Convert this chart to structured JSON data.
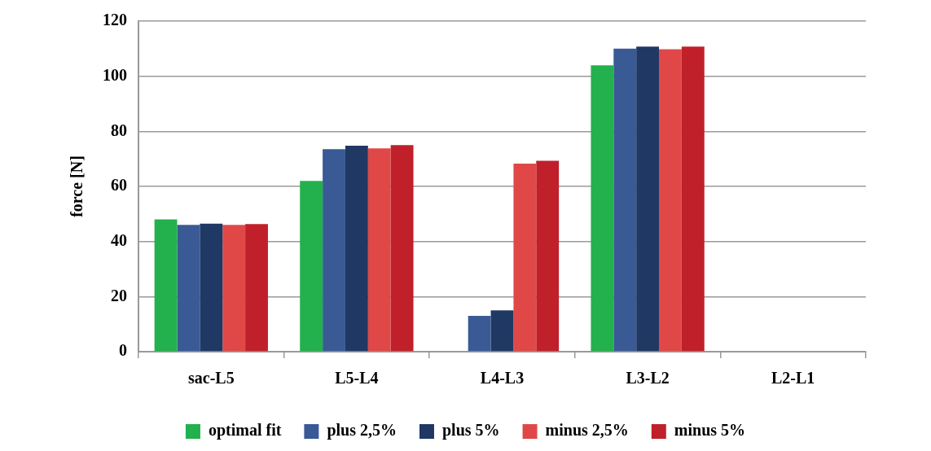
{
  "chart_data": {
    "type": "bar",
    "ylabel": "force [N]",
    "categories": [
      "sac-L5",
      "L5-L4",
      "L4-L3",
      "L3-L2",
      "L2-L1"
    ],
    "series": [
      {
        "name": "optimal fit",
        "color": "#22b14c",
        "values": [
          48,
          62,
          0,
          104,
          0
        ]
      },
      {
        "name": "plus 2,5%",
        "color": "#3a5a95",
        "values": [
          46,
          73.5,
          13,
          110,
          0
        ]
      },
      {
        "name": "plus 5%",
        "color": "#1f3864",
        "values": [
          46.5,
          74.8,
          15,
          110.8,
          0
        ]
      },
      {
        "name": "minus 2,5%",
        "color": "#e04848",
        "values": [
          46,
          73.8,
          68.3,
          109.8,
          0
        ]
      },
      {
        "name": "minus 5%",
        "color": "#c0202a",
        "values": [
          46.3,
          75,
          69.3,
          110.8,
          0
        ]
      }
    ],
    "ylim": [
      0,
      120
    ],
    "yticks": [
      0,
      20,
      40,
      60,
      80,
      100,
      120
    ],
    "grid": "y",
    "legend": "bottom"
  }
}
